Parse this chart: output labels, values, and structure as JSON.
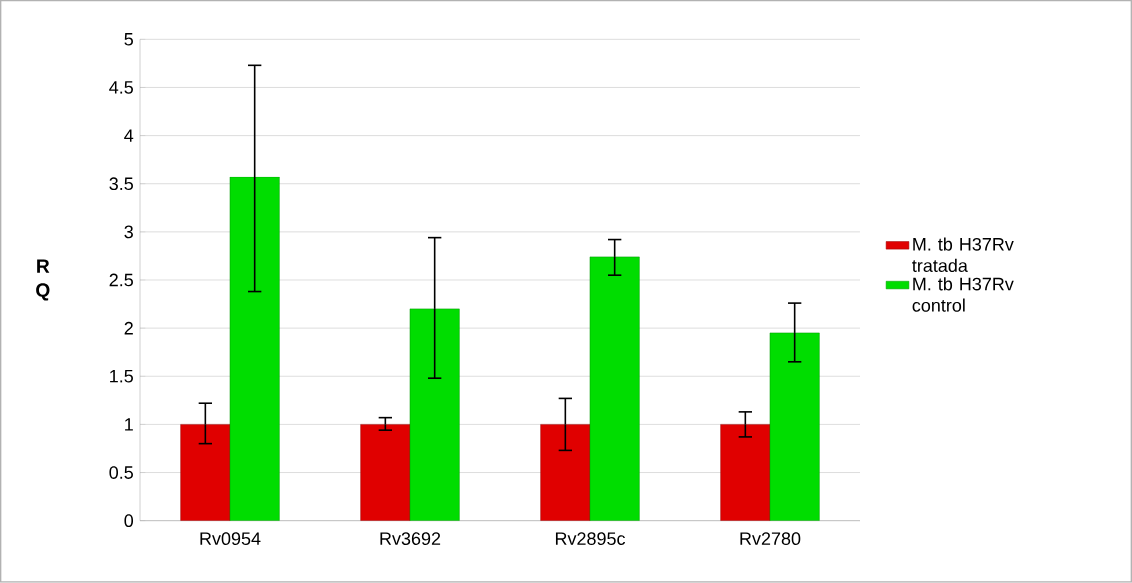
{
  "chart_data": {
    "type": "bar",
    "ylabel": "R Q",
    "categories": [
      "Rv0954",
      "Rv3692",
      "Rv2895c",
      "Rv2780"
    ],
    "series": [
      {
        "name": "M. tb H37Rv tratada",
        "color": "#e00000",
        "values": [
          1.0,
          1.0,
          1.0,
          1.0
        ],
        "errors": [
          [
            0.8,
            1.22
          ],
          [
            0.94,
            1.07
          ],
          [
            0.73,
            1.27
          ],
          [
            0.87,
            1.13
          ]
        ]
      },
      {
        "name": "M. tb H37Rv control",
        "color": "#00dd00",
        "values": [
          3.57,
          2.2,
          2.74,
          1.95
        ],
        "errors": [
          [
            2.38,
            4.73
          ],
          [
            1.48,
            2.94
          ],
          [
            2.55,
            2.92
          ],
          [
            1.65,
            2.26
          ]
        ]
      }
    ],
    "ylim": [
      0,
      5
    ],
    "yticks": [
      0,
      0.5,
      1,
      1.5,
      2,
      2.5,
      3,
      3.5,
      4,
      4.5,
      5
    ],
    "grid": "y",
    "legend": "right"
  }
}
